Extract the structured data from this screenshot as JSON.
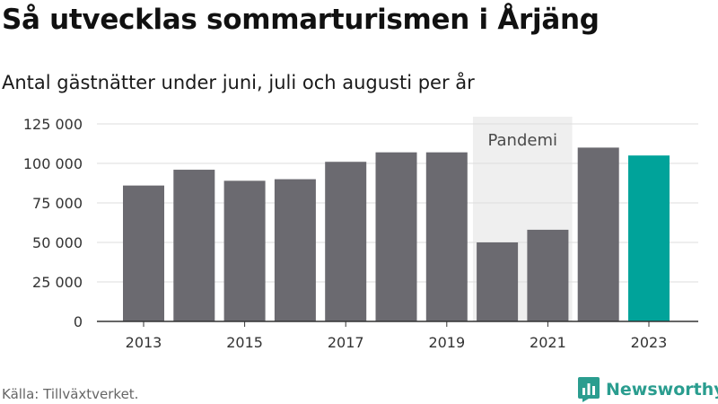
{
  "title": "Så utvecklas sommarturismen i Årjäng",
  "subtitle": "Antal gästnätter under juni, juli och augusti per år",
  "source": "Källa: Tillväxtverket.",
  "brand": "Newsworthy",
  "colors": {
    "bar": "#6b6a70",
    "highlight": "#00a39a",
    "band": "#efefef",
    "grid": "#dedede",
    "axis": "#333333",
    "brand": "#2a9d8f"
  },
  "chart_data": {
    "type": "bar",
    "title": "Så utvecklas sommarturismen i Årjäng",
    "subtitle": "Antal gästnätter under juni, juli och augusti per år",
    "categories": [
      "2013",
      "2014",
      "2015",
      "2016",
      "2017",
      "2018",
      "2019",
      "2020",
      "2021",
      "2022",
      "2023"
    ],
    "values": [
      86000,
      96000,
      89000,
      90000,
      101000,
      107000,
      107000,
      50000,
      58000,
      110000,
      105000
    ],
    "highlight_category": "2023",
    "x_tick_labels": [
      "2013",
      "2015",
      "2017",
      "2019",
      "2021",
      "2023"
    ],
    "y_ticks": [
      0,
      25000,
      50000,
      75000,
      100000,
      125000
    ],
    "y_tick_labels": [
      "0",
      "25 000",
      "50 000",
      "75 000",
      "100 000",
      "125 000"
    ],
    "ylim": [
      0,
      125000
    ],
    "grid": true,
    "annotation": {
      "label": "Pandemi",
      "from": "2020",
      "to": "2021"
    }
  }
}
